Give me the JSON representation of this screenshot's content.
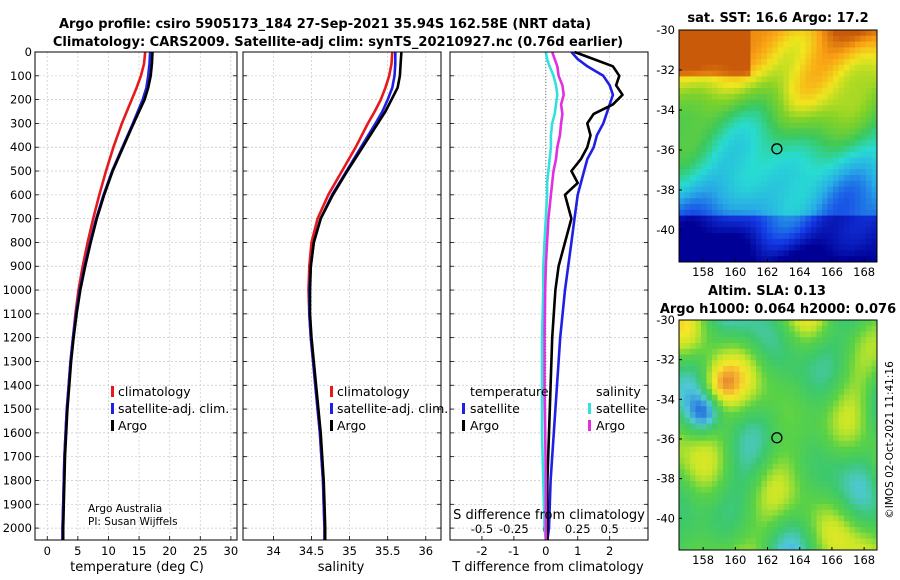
{
  "figure": {
    "title_line1": "Argo profile: csiro 5905173_184 27-Sep-2021 35.94S 162.58E (NRT data)",
    "title_line2": "Climatology: CARS2009. Satellite-adj clim: synTS_20210927.nc (0.76d earlier)",
    "credit_line1": "Argo Australia",
    "credit_line2": "PI: Susan Wijffels",
    "imos_stamp": "©IMOS 02-Oct-2021 11:41:16"
  },
  "colors": {
    "climatology": "#e41a1c",
    "satellite_adj": "#1f1fe6",
    "argo": "#000000",
    "cyan": "#33e0e0",
    "magenta": "#e030e0"
  },
  "chart_data": [
    {
      "type": "line",
      "id": "temperature",
      "xlabel": "temperature (deg C)",
      "ylabel": "",
      "xlim": [
        -2,
        31
      ],
      "ylim": [
        0,
        2050
      ],
      "xticks": [
        0,
        5,
        10,
        15,
        20,
        25,
        30
      ],
      "yticks": [
        0,
        100,
        200,
        300,
        400,
        500,
        600,
        700,
        800,
        900,
        1000,
        1100,
        1200,
        1300,
        1400,
        1500,
        1600,
        1700,
        1800,
        1900,
        2000
      ],
      "legend": [
        "climatology",
        "satellite-adj. clim.",
        "Argo"
      ],
      "depth": [
        0,
        50,
        100,
        150,
        200,
        250,
        300,
        400,
        500,
        600,
        700,
        800,
        900,
        1000,
        1100,
        1200,
        1300,
        1400,
        1500,
        1600,
        1700,
        1800,
        1900,
        2000,
        2050
      ],
      "series": [
        {
          "name": "climatology",
          "values": [
            16.0,
            15.8,
            15.3,
            14.6,
            13.8,
            13.0,
            12.2,
            10.8,
            9.6,
            8.5,
            7.5,
            6.6,
            5.8,
            5.1,
            4.6,
            4.2,
            3.8,
            3.5,
            3.2,
            3.0,
            2.8,
            2.7,
            2.6,
            2.5,
            2.5
          ]
        },
        {
          "name": "satellite-adj. clim.",
          "values": [
            16.8,
            16.7,
            16.5,
            16.2,
            15.6,
            14.8,
            14.0,
            12.3,
            10.6,
            9.2,
            8.0,
            7.0,
            6.1,
            5.3,
            4.7,
            4.2,
            3.8,
            3.5,
            3.2,
            3.0,
            2.8,
            2.7,
            2.6,
            2.5,
            2.5
          ]
        },
        {
          "name": "Argo",
          "values": [
            17.2,
            17.1,
            16.9,
            16.5,
            15.9,
            15.0,
            14.1,
            12.4,
            10.7,
            9.3,
            8.1,
            7.1,
            6.2,
            5.4,
            4.8,
            4.3,
            3.9,
            3.6,
            3.3,
            3.1,
            2.9,
            2.8,
            2.7,
            2.6,
            2.6
          ]
        }
      ]
    },
    {
      "type": "line",
      "id": "salinity",
      "xlabel": "salinity",
      "xlim": [
        33.6,
        36.2
      ],
      "ylim": [
        0,
        2050
      ],
      "xticks": [
        34,
        34.5,
        35,
        35.5,
        36
      ],
      "legend": [
        "climatology",
        "satellite-adj. clim.",
        "Argo"
      ],
      "depth": [
        0,
        50,
        100,
        150,
        200,
        250,
        300,
        400,
        500,
        600,
        700,
        800,
        900,
        1000,
        1100,
        1200,
        1300,
        1400,
        1500,
        1600,
        1700,
        1800,
        1900,
        2000,
        2050
      ],
      "series": [
        {
          "name": "climatology",
          "values": [
            35.56,
            35.55,
            35.52,
            35.47,
            35.41,
            35.33,
            35.24,
            35.08,
            34.9,
            34.72,
            34.58,
            34.5,
            34.47,
            34.46,
            34.47,
            34.49,
            34.52,
            34.55,
            34.58,
            34.61,
            34.63,
            34.65,
            34.66,
            34.67,
            34.67
          ]
        },
        {
          "name": "satellite-adj. clim.",
          "values": [
            35.6,
            35.6,
            35.59,
            35.56,
            35.5,
            35.43,
            35.34,
            35.15,
            34.96,
            34.77,
            34.62,
            34.53,
            34.49,
            34.47,
            34.47,
            34.49,
            34.52,
            34.55,
            34.58,
            34.61,
            34.63,
            34.65,
            34.66,
            34.67,
            34.67
          ]
        },
        {
          "name": "Argo",
          "values": [
            35.68,
            35.67,
            35.66,
            35.63,
            35.55,
            35.47,
            35.37,
            35.17,
            34.97,
            34.78,
            34.62,
            34.53,
            34.49,
            34.48,
            34.48,
            34.5,
            34.53,
            34.56,
            34.59,
            34.62,
            34.64,
            34.66,
            34.67,
            34.68,
            34.68
          ]
        }
      ]
    },
    {
      "type": "line",
      "id": "difference",
      "xlabel": "T difference from climatology",
      "xlabel_top": "S difference from climatology",
      "xlim": [
        -3,
        3.2
      ],
      "ylim": [
        0,
        2050
      ],
      "xticks": [
        -2,
        -1,
        0,
        1,
        2
      ],
      "xticks_top_labels": [
        "-0.5",
        "-0.25",
        "0",
        "0.25",
        "0.5"
      ],
      "xticks_top_values": [
        -0.5,
        -0.25,
        0,
        0.25,
        0.5
      ],
      "legend_left_title": "temperature",
      "legend_right_title": "salinity",
      "legend_left": [
        "satellite",
        "Argo"
      ],
      "legend_right": [
        "satellite",
        "Argo"
      ],
      "depth": [
        0,
        30,
        60,
        100,
        140,
        180,
        220,
        260,
        300,
        350,
        400,
        450,
        500,
        550,
        600,
        700,
        800,
        900,
        1000,
        1200,
        1400,
        1600,
        1800,
        2000,
        2050
      ],
      "series": [
        {
          "name": "temperature satellite",
          "values": [
            0.8,
            1.0,
            1.3,
            1.8,
            2.0,
            2.1,
            2.0,
            1.9,
            1.8,
            1.6,
            1.5,
            1.3,
            1.2,
            1.1,
            1.0,
            0.9,
            0.8,
            0.7,
            0.6,
            0.45,
            0.35,
            0.25,
            0.15,
            0.1,
            0.05
          ]
        },
        {
          "name": "temperature Argo",
          "values": [
            0.9,
            1.5,
            2.1,
            2.3,
            2.2,
            2.4,
            2.1,
            1.5,
            1.3,
            1.4,
            1.3,
            1.1,
            0.8,
            1.0,
            0.6,
            0.8,
            0.6,
            0.4,
            0.3,
            0.2,
            0.15,
            0.1,
            0.05,
            0.05,
            0.05
          ]
        },
        {
          "name": "salinity satellite",
          "values": [
            0.0,
            0.01,
            0.03,
            0.06,
            0.08,
            0.09,
            0.08,
            0.07,
            0.05,
            0.04,
            0.04,
            0.03,
            0.02,
            0.01,
            0.01,
            0.0,
            -0.01,
            -0.02,
            -0.02,
            -0.03,
            -0.03,
            -0.03,
            -0.02,
            -0.01,
            0.0
          ]
        },
        {
          "name": "salinity Argo",
          "values": [
            0.05,
            0.07,
            0.09,
            0.1,
            0.13,
            0.14,
            0.12,
            0.13,
            0.12,
            0.11,
            0.09,
            0.08,
            0.06,
            0.05,
            0.04,
            0.02,
            0.01,
            0.0,
            -0.005,
            -0.01,
            -0.01,
            -0.005,
            0.0,
            0.0,
            0.0
          ]
        }
      ]
    },
    {
      "type": "heatmap",
      "id": "sst_map",
      "title": "sat. SST: 16.6 Argo: 17.2",
      "xticks": [
        158,
        160,
        162,
        164,
        166,
        168
      ],
      "yticks": [
        -30,
        -32,
        -34,
        -36,
        -38,
        -40
      ],
      "xlim": [
        156.5,
        168.8
      ],
      "ylim": [
        -41.6,
        -30
      ],
      "marker": {
        "lon": 162.58,
        "lat": -35.94
      }
    },
    {
      "type": "heatmap",
      "id": "sla_map",
      "title_line1": "Altim. SLA: 0.13",
      "title_line2": "Argo h1000: 0.064 h2000: 0.076",
      "xticks": [
        158,
        160,
        162,
        164,
        166,
        168
      ],
      "yticks": [
        -30,
        -32,
        -34,
        -36,
        -38,
        -40
      ],
      "xlim": [
        156.5,
        168.8
      ],
      "ylim": [
        -41.6,
        -30
      ],
      "marker": {
        "lon": 162.58,
        "lat": -35.94
      }
    }
  ]
}
